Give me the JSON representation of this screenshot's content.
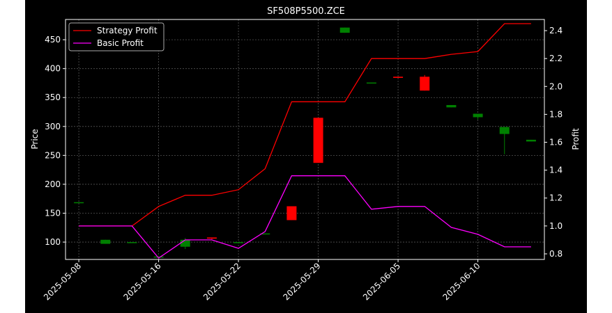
{
  "chart_data": {
    "type": "candlestick+line",
    "title": "SF508P5500.ZCE",
    "ylabel_left": "Price",
    "ylabel_right": "Profit",
    "ylim_left": [
      70,
      485
    ],
    "ylim_right": [
      0.76,
      2.48
    ],
    "yticks_left": [
      100,
      150,
      200,
      250,
      300,
      350,
      400,
      450
    ],
    "yticks_right": [
      0.8,
      1.0,
      1.2,
      1.4,
      1.6,
      1.8,
      2.0,
      2.2,
      2.4
    ],
    "grid": true,
    "legend_position": "top-left",
    "legend": [
      "Strategy Profit",
      "Basic Profit"
    ],
    "x_index_range": [
      -0.5,
      17.5
    ],
    "xticks": [
      {
        "i": 0,
        "label": "2025-05-08"
      },
      {
        "i": 3,
        "label": "2025-05-16"
      },
      {
        "i": 6,
        "label": "2025-05-22"
      },
      {
        "i": 9,
        "label": "2025-05-29"
      },
      {
        "i": 12,
        "label": "2025-06-05"
      },
      {
        "i": 15,
        "label": "2025-06-10"
      }
    ],
    "candles": [
      {
        "i": 0,
        "open": 169,
        "close": 169,
        "high": 169,
        "low": 169
      },
      {
        "i": 1,
        "open": 97,
        "close": 104,
        "high": 104,
        "low": 97
      },
      {
        "i": 2,
        "open": 100,
        "close": 100,
        "high": 100,
        "low": 100
      },
      {
        "i": 3,
        "open": 75,
        "close": 75,
        "high": 76,
        "low": 74
      },
      {
        "i": 4,
        "open": 92,
        "close": 104,
        "high": 107,
        "low": 88
      },
      {
        "i": 5,
        "open": 108,
        "close": 106,
        "high": 108,
        "low": 105
      },
      {
        "i": 6,
        "open": 100,
        "close": 100,
        "high": 100,
        "low": 100
      },
      {
        "i": 7,
        "open": 115,
        "close": 115,
        "high": 115,
        "low": 115
      },
      {
        "i": 8,
        "open": 162,
        "close": 138,
        "high": 162,
        "low": 138
      },
      {
        "i": 9,
        "open": 315,
        "close": 237,
        "high": 315,
        "low": 237
      },
      {
        "i": 10,
        "open": 462,
        "close": 471,
        "high": 471,
        "low": 462
      },
      {
        "i": 11,
        "open": 376,
        "close": 376,
        "high": 376,
        "low": 376
      },
      {
        "i": 12,
        "open": 386,
        "close": 384,
        "high": 386,
        "low": 384
      },
      {
        "i": 13,
        "open": 386,
        "close": 362,
        "high": 389,
        "low": 362
      },
      {
        "i": 14,
        "open": 333,
        "close": 337,
        "high": 337,
        "low": 333
      },
      {
        "i": 15,
        "open": 316,
        "close": 322,
        "high": 322,
        "low": 312
      },
      {
        "i": 16,
        "open": 287,
        "close": 299,
        "high": 299,
        "low": 252
      },
      {
        "i": 17,
        "open": 274,
        "close": 277,
        "high": 277,
        "low": 274
      }
    ],
    "series": [
      {
        "name": "Strategy Profit",
        "color": "#ff0000",
        "values": [
          1.0,
          1.0,
          1.0,
          1.14,
          1.22,
          1.22,
          1.26,
          1.41,
          1.89,
          1.89,
          1.89,
          2.2,
          2.2,
          2.2,
          2.23,
          2.25,
          2.45,
          2.45
        ]
      },
      {
        "name": "Basic Profit",
        "color": "#ff00ff",
        "values": [
          1.0,
          1.0,
          1.0,
          0.77,
          0.9,
          0.9,
          0.84,
          0.96,
          1.36,
          1.36,
          1.36,
          1.12,
          1.14,
          1.14,
          0.99,
          0.94,
          0.85,
          0.85
        ]
      }
    ],
    "colors": {
      "up": "#008000",
      "down": "#ff0000",
      "background": "#000000",
      "text": "#ffffff",
      "grid": "#555555"
    }
  }
}
